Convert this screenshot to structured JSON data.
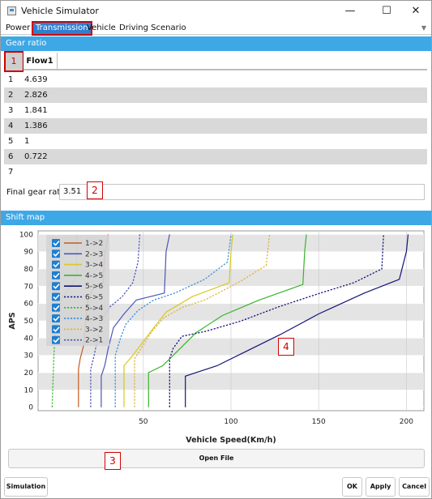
{
  "window": {
    "title": "Vehicle Simulator",
    "minimize": "—",
    "maximize": "☐",
    "close": "✕"
  },
  "menu": {
    "tabs": [
      "Power",
      "Transmission",
      "Vehicle",
      "Driving Scenario"
    ],
    "active": "Transmission"
  },
  "gear_ratio": {
    "header": "Gear ratio",
    "callout": "1",
    "column": "Flow1",
    "rows": [
      {
        "index": "1",
        "value": "4.639"
      },
      {
        "index": "2",
        "value": "2.826"
      },
      {
        "index": "3",
        "value": "1.841"
      },
      {
        "index": "4",
        "value": "1.386"
      },
      {
        "index": "5",
        "value": "1"
      },
      {
        "index": "6",
        "value": "0.722"
      },
      {
        "index": "7",
        "value": ""
      }
    ],
    "final_label": "Final gear ratio",
    "final_value": "3.51",
    "final_callout": "2"
  },
  "shift_map": {
    "header": "Shift map",
    "chart_callout": "4",
    "open_file_label": "Open File",
    "open_file_callout": "3"
  },
  "footer": {
    "simulation": "Simulation",
    "ok": "OK",
    "apply": "Apply",
    "cancel": "Cancel"
  },
  "chart_data": {
    "type": "line",
    "xlabel": "Vehicle Speed(Km/h)",
    "ylabel": "APS",
    "xlim": [
      -10,
      210
    ],
    "ylim": [
      -2,
      102
    ],
    "xticks": [
      50,
      100,
      150,
      200
    ],
    "yticks": [
      0,
      10,
      20,
      30,
      40,
      50,
      60,
      70,
      80,
      90,
      100
    ],
    "grid": true,
    "legend_position": "top-left",
    "series": [
      {
        "name": "1->2",
        "color": "#c85a1e",
        "dash": false,
        "points": [
          [
            13,
            0
          ],
          [
            13,
            22
          ],
          [
            14,
            28
          ],
          [
            16,
            36
          ],
          [
            17,
            48
          ],
          [
            18,
            60
          ],
          [
            21,
            68
          ],
          [
            27,
            72
          ],
          [
            28,
            88
          ],
          [
            30,
            100
          ]
        ]
      },
      {
        "name": "2->3",
        "color": "#4b56b8",
        "dash": false,
        "points": [
          [
            26,
            0
          ],
          [
            26,
            18
          ],
          [
            28,
            24
          ],
          [
            30,
            34
          ],
          [
            33,
            46
          ],
          [
            39,
            54
          ],
          [
            46,
            62
          ],
          [
            62,
            66
          ],
          [
            63,
            90
          ],
          [
            65,
            100
          ]
        ]
      },
      {
        "name": "3->4",
        "color": "#d8c81e",
        "dash": false,
        "points": [
          [
            39,
            0
          ],
          [
            39,
            24
          ],
          [
            44,
            30
          ],
          [
            50,
            38
          ],
          [
            56,
            46
          ],
          [
            63,
            55
          ],
          [
            78,
            64
          ],
          [
            99,
            72
          ],
          [
            100,
            90
          ],
          [
            101,
            100
          ]
        ]
      },
      {
        "name": "4->5",
        "color": "#38b52a",
        "dash": false,
        "points": [
          [
            53,
            0
          ],
          [
            53,
            20
          ],
          [
            61,
            24
          ],
          [
            70,
            33
          ],
          [
            80,
            43
          ],
          [
            95,
            53
          ],
          [
            116,
            62
          ],
          [
            141,
            71
          ],
          [
            142,
            90
          ],
          [
            143,
            100
          ]
        ]
      },
      {
        "name": "5->6",
        "color": "#13137a",
        "dash": false,
        "points": [
          [
            74,
            0
          ],
          [
            74,
            18
          ],
          [
            92,
            24
          ],
          [
            108,
            32
          ],
          [
            128,
            42
          ],
          [
            150,
            54
          ],
          [
            176,
            66
          ],
          [
            196,
            74
          ],
          [
            200,
            90
          ],
          [
            201,
            100
          ]
        ]
      },
      {
        "name": "6->5",
        "color": "#13137a",
        "dash": true,
        "points": [
          [
            65,
            0
          ],
          [
            65,
            28
          ],
          [
            67,
            34
          ],
          [
            72,
            41
          ],
          [
            86,
            44
          ],
          [
            106,
            50
          ],
          [
            127,
            58
          ],
          [
            151,
            66
          ],
          [
            170,
            72
          ],
          [
            186,
            80
          ],
          [
            187,
            100
          ]
        ]
      },
      {
        "name": "5->4",
        "color": "#38b52a",
        "dash": true,
        "points": [
          [
            -2,
            0
          ],
          [
            -1,
            30
          ],
          [
            0,
            46
          ],
          [
            2,
            58
          ],
          [
            4,
            64
          ],
          [
            9,
            70
          ],
          [
            12,
            76
          ],
          [
            12,
            100
          ]
        ]
      },
      {
        "name": "4->3",
        "color": "#3a8fd8",
        "dash": true,
        "points": [
          [
            34,
            0
          ],
          [
            34,
            30
          ],
          [
            37,
            40
          ],
          [
            40,
            48
          ],
          [
            47,
            56
          ],
          [
            56,
            62
          ],
          [
            68,
            66
          ],
          [
            85,
            74
          ],
          [
            98,
            84
          ],
          [
            100,
            100
          ]
        ]
      },
      {
        "name": "3->2",
        "color": "#e0b33a",
        "dash": true,
        "points": [
          [
            45,
            0
          ],
          [
            45,
            28
          ],
          [
            50,
            36
          ],
          [
            55,
            44
          ],
          [
            62,
            52
          ],
          [
            73,
            58
          ],
          [
            85,
            62
          ],
          [
            104,
            72
          ],
          [
            120,
            82
          ],
          [
            122,
            100
          ]
        ]
      },
      {
        "name": "2->1",
        "color": "#4b56b8",
        "dash": true,
        "points": [
          [
            20,
            0
          ],
          [
            20,
            22
          ],
          [
            22,
            30
          ],
          [
            24,
            40
          ],
          [
            26,
            50
          ],
          [
            31,
            58
          ],
          [
            38,
            64
          ],
          [
            44,
            72
          ],
          [
            47,
            84
          ],
          [
            48,
            100
          ]
        ]
      }
    ]
  }
}
